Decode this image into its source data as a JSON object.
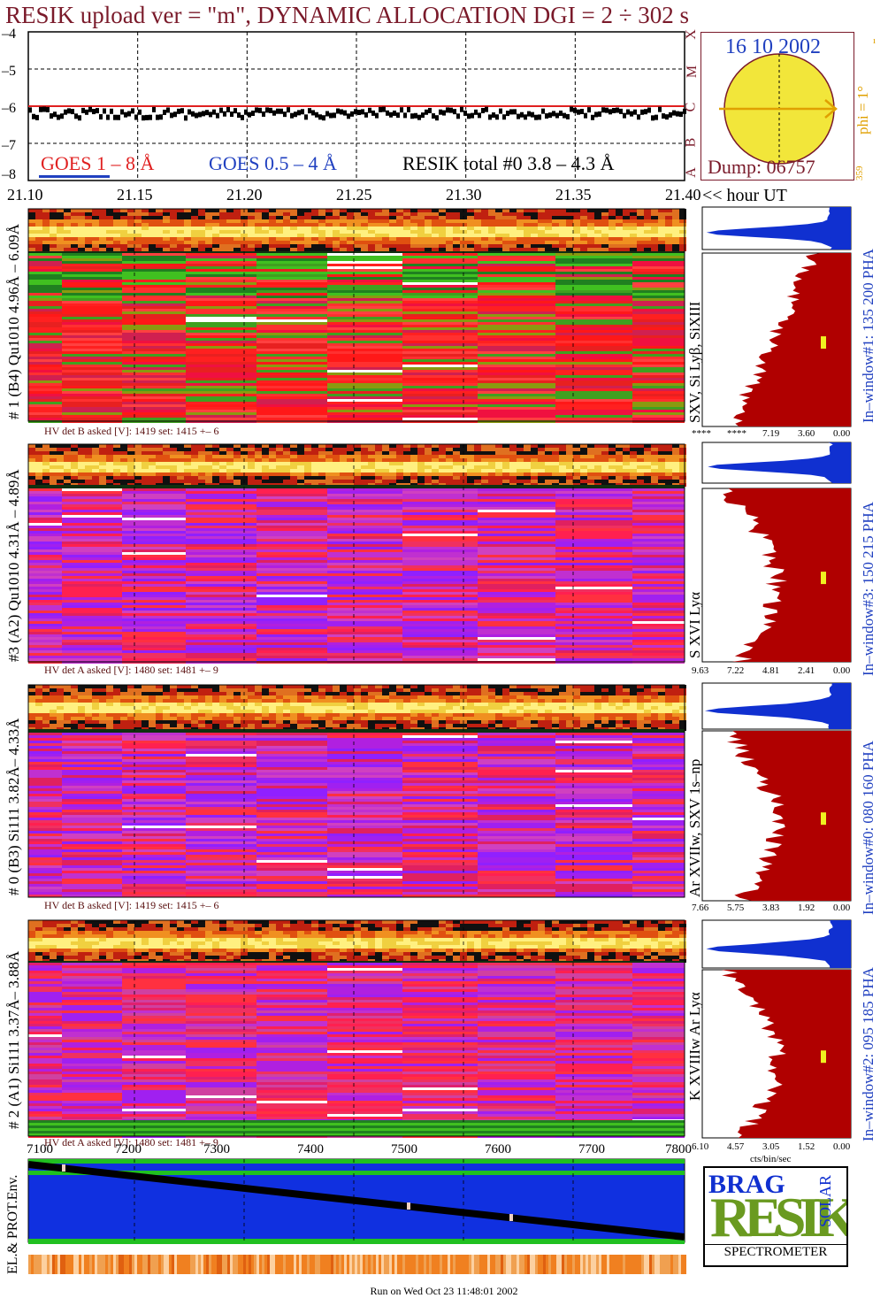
{
  "header": {
    "title": "RESIK upload ver = \"m\", DYNAMIC ALLOCATION  DGI =   2 ÷ 302 s"
  },
  "goes_legend": {
    "goes1": "GOES 1 – 8 Å",
    "goes2": "GOES 0.5 – 4 Å",
    "resik_total": "RESIK total #0  3.8 – 4.3 Å"
  },
  "goes_axis": {
    "yticks": [
      "–4",
      "–5",
      "–6",
      "–7",
      "–8"
    ],
    "class_letters": [
      "X",
      "M",
      "C",
      "B",
      "A"
    ]
  },
  "time_axis": {
    "ticks": [
      "21.10",
      "21.15",
      "21.20",
      "21.25",
      "21.30",
      "21.35",
      "21.40"
    ],
    "unit_label": "<< hour UT"
  },
  "sun_panel": {
    "date": "16 10 2002",
    "dump": "Dump: 06757",
    "phi_label": "phi =  1°",
    "phi_top": "ı",
    "phi_bottom": "359"
  },
  "detector_panels": [
    {
      "label": "# 1 (B4) Qu1010 4.96Å – 6.09Å",
      "lines": "SXV, Si Lyβ, SiXIII",
      "window": "In–window#1:  135 200 PHA",
      "hv": "HV det B asked [V]:  1419 set:  1415  +–    6",
      "hist_axis": [
        "****",
        "****",
        "7.19",
        "3.60",
        "0.00"
      ]
    },
    {
      "label": "#3 (A2) Qu1010  4.31Å – 4.89Å",
      "lines": "S XVI Lyα",
      "window": "In–window#3:  150 215 PHA",
      "hv": "HV det A asked [V]:  1480 set:  1481  +–    9",
      "hist_axis": [
        "9.63",
        "7.22",
        "4.81",
        "2.41",
        "0.00"
      ]
    },
    {
      "label": "# 0 (B3) Si111  3.82Å– 4.33Å",
      "lines": "Ar XVIIw,  SXV 1s–np",
      "window": "In–window#0:  080 160 PHA",
      "hv": "HV det B asked [V]:  1419 set:  1415  +–    6",
      "hist_axis": [
        "7.66",
        "5.75",
        "3.83",
        "1.92",
        "0.00"
      ]
    },
    {
      "label": "# 2 (A1) Si111  3.37Å– 3.88Å",
      "lines": "K XVIIIw  Ar Lyα",
      "window": "In–window#2:  095 185 PHA",
      "hv": "HV det A asked [V]:  1480 set:  1481  +–    9",
      "hist_axis": [
        "6.10",
        "4.57",
        "3.05",
        "1.52",
        "0.00"
      ],
      "hist_unit": "cts/bin/sec"
    }
  ],
  "bottom_panel": {
    "label": "EL.& PROT.Env.",
    "xticks": [
      "7100",
      "7200",
      "7300",
      "7400",
      "7500",
      "7600",
      "7700",
      "7800"
    ]
  },
  "logo": {
    "letters": "RESIK",
    "small": "BRAG",
    "solar": "SOLAR",
    "word": "SPECTROMETER"
  },
  "footer": {
    "run": "Run on Wed Oct 23 11:48:01 2002"
  },
  "colors": {
    "title": "#7a1a2a",
    "goes1": "#e02020",
    "goes2": "#2040c0",
    "hist_fill": "#b00000",
    "hist_top": "#1030d0",
    "sun": "#f2e63a",
    "phi": "#e0a000"
  },
  "chart_data": {
    "type": "line",
    "title": "RESIK upload ver = \"m\", DYNAMIC ALLOCATION  DGI =   2 ÷ 302 s",
    "xlabel": "<< hour UT",
    "x_ticks": [
      21.1,
      21.15,
      21.2,
      21.25,
      21.3,
      21.35,
      21.4
    ],
    "y_ticks": [
      -4,
      -5,
      -6,
      -7,
      -8
    ],
    "ylim": [
      -8,
      -4
    ],
    "series": [
      {
        "name": "GOES 1 – 8 Å",
        "values": [
          -6.0,
          -6.0,
          -6.0,
          -6.0,
          -6.0,
          -6.0,
          -6.0
        ],
        "color": "#e02020"
      },
      {
        "name": "RESIK total #0  3.8 – 4.3 Å",
        "values": [
          -6.2,
          -6.2,
          -6.2,
          -6.2,
          -6.2,
          -6.2,
          -6.2
        ],
        "color": "#000000"
      }
    ]
  }
}
